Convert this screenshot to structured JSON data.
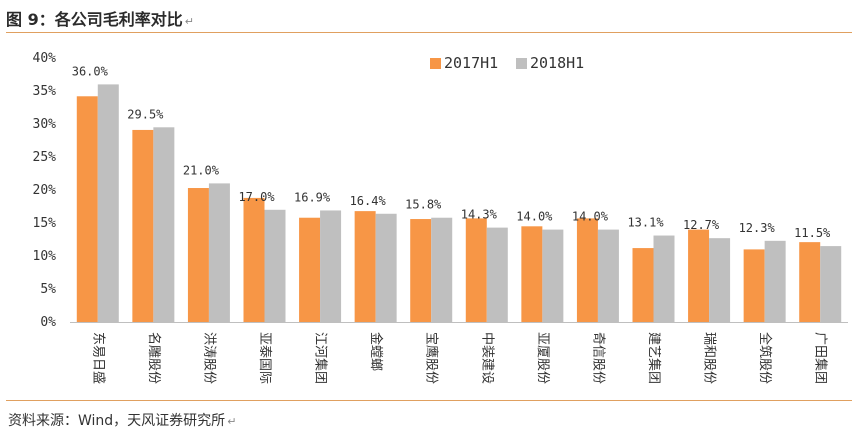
{
  "header": {
    "title": "图 9：各公司毛利率对比",
    "mark": "↵"
  },
  "footer": {
    "source": "资料来源：Wind，天风证券研究所",
    "mark": "↵"
  },
  "colors": {
    "series1": "#f79646",
    "series2": "#bfbfbf",
    "accent": "#e0a060"
  },
  "chart_data": {
    "type": "bar",
    "title": "各公司毛利率对比",
    "xlabel": "",
    "ylabel": "",
    "ylim": [
      0,
      40
    ],
    "yticks": [
      "0%",
      "5%",
      "10%",
      "15%",
      "20%",
      "25%",
      "30%",
      "35%",
      "40%"
    ],
    "legend_position": "top-right",
    "categories": [
      "东易日盛",
      "名雕股份",
      "洪涛股份",
      "亚泰国际",
      "江河集团",
      "金螳螂",
      "宝鹰股份",
      "中装建设",
      "亚厦股份",
      "奇信股份",
      "建艺集团",
      "瑞和股份",
      "全筑股份",
      "广田集团"
    ],
    "series": [
      {
        "name": "2017H1",
        "values": [
          34.2,
          29.1,
          20.3,
          18.8,
          15.8,
          16.8,
          15.6,
          15.7,
          14.5,
          15.7,
          11.2,
          14.0,
          11.0,
          12.1
        ]
      },
      {
        "name": "2018H1",
        "values": [
          36.0,
          29.5,
          21.0,
          17.0,
          16.9,
          16.4,
          15.8,
          14.3,
          14.0,
          14.0,
          13.1,
          12.7,
          12.3,
          11.5
        ]
      }
    ],
    "data_labels": [
      "36.0%",
      "29.5%",
      "21.0%",
      "17.0%",
      "16.9%",
      "16.4%",
      "15.8%",
      "14.3%",
      "14.0%",
      "14.0%",
      "13.1%",
      "12.7%",
      "12.3%",
      "11.5%"
    ]
  }
}
